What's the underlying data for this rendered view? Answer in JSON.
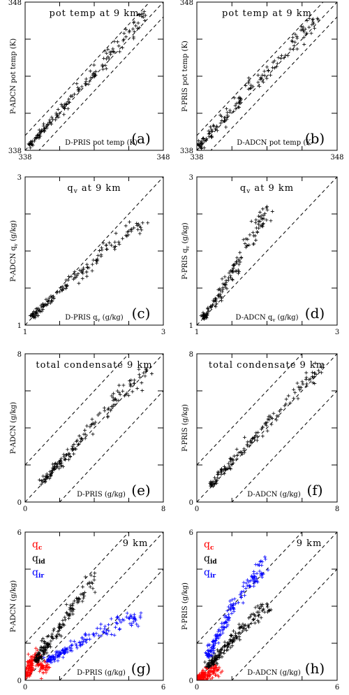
{
  "figure": {
    "panels": [
      {
        "id": "a",
        "title": "pot temp at 9 km",
        "xlabel": "D-PRIS pot temp (K)",
        "ylabel": "P-ADCN pot temp (K)",
        "label": "(a)",
        "xlim": [
          338,
          348
        ],
        "ylim": [
          338,
          348
        ],
        "xticklabels": [
          "338",
          "348"
        ],
        "yticklabels": [
          "338",
          "348"
        ],
        "dashed_offsets": [
          -1,
          0,
          1
        ]
      },
      {
        "id": "b",
        "title": "pot temp at 9 km",
        "xlabel": "D-ADCN pot temp (K",
        "ylabel": "P-PRIS pot temp (K)",
        "label": "(b)",
        "xlim": [
          338,
          348
        ],
        "ylim": [
          338,
          348
        ],
        "xticklabels": [
          "338",
          "348"
        ],
        "yticklabels": [
          "338",
          "348"
        ],
        "dashed_offsets": [
          -1,
          0,
          1
        ]
      },
      {
        "id": "c",
        "title_main": "q",
        "title_sub": "v",
        "title_rest": "at 9 km",
        "xlabel_pre": "D-PRIS q",
        "xlabel_sub": "v",
        "xlabel_post": "(g/kg)",
        "ylabel_pre": "P-ADCN q",
        "ylabel_sub": "v",
        "ylabel_post": "(g/kg)",
        "label": "(c)",
        "xlim": [
          1,
          3
        ],
        "ylim": [
          1,
          3
        ],
        "xticklabels": [
          "1",
          "3"
        ],
        "yticklabels": [
          "1",
          "3"
        ],
        "dashed_offsets": [
          0
        ]
      },
      {
        "id": "d",
        "title_main": "q",
        "title_sub": "v",
        "title_rest": "at 9 km",
        "xlabel_pre": "D-ADCN q",
        "xlabel_sub": "v",
        "xlabel_post": "(g/kg)",
        "ylabel_pre": "P-PRIS q",
        "ylabel_sub": "v",
        "ylabel_post": "(g/kg)",
        "label": "(d)",
        "xlim": [
          1,
          3
        ],
        "ylim": [
          1,
          3
        ],
        "xticklabels": [
          "1",
          "3"
        ],
        "yticklabels": [
          "1",
          "3"
        ],
        "dashed_offsets": [
          0
        ]
      },
      {
        "id": "e",
        "title": "total condensate 9 km",
        "xlabel": "D-PRIS (g/kg)",
        "ylabel": "P-ADCN (g/kg)",
        "label": "(e)",
        "xlim": [
          0,
          8
        ],
        "ylim": [
          0,
          8
        ],
        "xticklabels": [
          "0",
          "8"
        ],
        "yticklabels": [
          "0",
          "8"
        ],
        "dashed_offsets": [
          -2,
          0,
          2
        ]
      },
      {
        "id": "f",
        "title": "total condensate 9 km",
        "xlabel": "D-ADCN (g/kg)",
        "ylabel": "P-PRIS (g/kg)",
        "label": "(f)",
        "xlim": [
          0,
          8
        ],
        "ylim": [
          0,
          8
        ],
        "xticklabels": [
          "0",
          "8"
        ],
        "yticklabels": [
          "0",
          "8"
        ],
        "dashed_offsets": [
          -2,
          0,
          2
        ]
      },
      {
        "id": "g",
        "title": "9 km",
        "xlabel": "D-PRIS (g/kg)",
        "ylabel": "P-ADCN (g/kg)",
        "label": "(g)",
        "xlim": [
          0,
          6
        ],
        "ylim": [
          0,
          6
        ],
        "xticklabels": [
          "0",
          "6"
        ],
        "yticklabels": [
          "0",
          "6"
        ],
        "dashed_offsets": [
          -1.5,
          0,
          1.5
        ],
        "legend": [
          {
            "main": "q",
            "sub": "c",
            "color": "#ff0000"
          },
          {
            "main": "q",
            "sub": "id",
            "color": "#000000"
          },
          {
            "main": "q",
            "sub": "ir",
            "color": "#0000ff"
          }
        ]
      },
      {
        "id": "h",
        "title": "9 km",
        "xlabel": "D-ADCN (g/kg)",
        "ylabel": "P-PRIS (g/kg)",
        "label": "(h)",
        "xlim": [
          0,
          6
        ],
        "ylim": [
          0,
          6
        ],
        "xticklabels": [
          "0",
          "6"
        ],
        "yticklabels": [
          "0",
          "6"
        ],
        "dashed_offsets": [
          -1.5,
          0,
          1.5
        ],
        "legend": [
          {
            "main": "q",
            "sub": "c",
            "color": "#ff0000"
          },
          {
            "main": "q",
            "sub": "id",
            "color": "#000000"
          },
          {
            "main": "q",
            "sub": "ir",
            "color": "#0000ff"
          }
        ]
      }
    ]
  },
  "chart_data": [
    {
      "type": "scatter",
      "panel": "a",
      "xlim": [
        338,
        348
      ],
      "ylim": [
        338,
        348
      ],
      "series": [
        {
          "color": "#000000",
          "x": [
            338.3,
            339.2,
            340.0,
            341.0,
            342.1,
            343.0,
            344.0,
            345.1,
            346.0,
            346.7
          ],
          "y": [
            338.4,
            339.3,
            340.1,
            341.1,
            342.3,
            343.2,
            344.3,
            345.4,
            346.4,
            347.1
          ]
        }
      ]
    },
    {
      "type": "scatter",
      "panel": "b",
      "xlim": [
        338,
        348
      ],
      "ylim": [
        338,
        348
      ],
      "series": [
        {
          "color": "#000000",
          "x": [
            338.2,
            339.1,
            340.0,
            341.0,
            342.0,
            343.1,
            344.0,
            345.0,
            346.0,
            346.6
          ],
          "y": [
            338.3,
            339.3,
            340.2,
            341.2,
            342.3,
            343.4,
            344.2,
            345.3,
            346.3,
            346.9
          ]
        }
      ]
    },
    {
      "type": "scatter",
      "panel": "c",
      "xlim": [
        1,
        3
      ],
      "ylim": [
        1,
        3
      ],
      "series": [
        {
          "color": "#000000",
          "x": [
            1.1,
            1.3,
            1.5,
            1.7,
            1.9,
            2.1,
            2.3,
            2.5,
            2.7
          ],
          "y": [
            1.12,
            1.28,
            1.45,
            1.62,
            1.78,
            1.95,
            2.12,
            2.27,
            2.38
          ]
        }
      ]
    },
    {
      "type": "scatter",
      "panel": "d",
      "xlim": [
        1,
        3
      ],
      "ylim": [
        1,
        3
      ],
      "series": [
        {
          "color": "#000000",
          "x": [
            1.1,
            1.2,
            1.3,
            1.4,
            1.5,
            1.6,
            1.7,
            1.8,
            1.9,
            2.0
          ],
          "y": [
            1.1,
            1.25,
            1.4,
            1.55,
            1.72,
            1.88,
            2.05,
            2.25,
            2.4,
            2.6
          ]
        }
      ]
    },
    {
      "type": "scatter",
      "panel": "e",
      "xlim": [
        0,
        8
      ],
      "ylim": [
        0,
        8
      ],
      "series": [
        {
          "color": "#000000",
          "x": [
            1.0,
            1.8,
            2.5,
            3.3,
            4.0,
            4.8,
            5.5,
            6.3,
            7.0
          ],
          "y": [
            1.1,
            1.9,
            2.6,
            3.4,
            4.2,
            5.0,
            5.8,
            6.4,
            7.2
          ]
        }
      ]
    },
    {
      "type": "scatter",
      "panel": "f",
      "xlim": [
        0,
        8
      ],
      "ylim": [
        0,
        8
      ],
      "series": [
        {
          "color": "#000000",
          "x": [
            0.8,
            1.6,
            2.5,
            3.3,
            4.0,
            4.8,
            5.6,
            6.4,
            7.2
          ],
          "y": [
            0.9,
            1.8,
            2.7,
            3.5,
            4.3,
            5.0,
            5.9,
            6.6,
            7.4
          ]
        }
      ]
    },
    {
      "type": "scatter",
      "panel": "g",
      "xlim": [
        0,
        6
      ],
      "ylim": [
        0,
        6
      ],
      "series": [
        {
          "name": "qc",
          "color": "#ff0000",
          "x": [
            0.1,
            0.2,
            0.3,
            0.5,
            0.7,
            0.9
          ],
          "y": [
            0.2,
            0.5,
            0.8,
            1.0,
            0.6,
            0.4
          ]
        },
        {
          "name": "qid",
          "color": "#000000",
          "x": [
            0.5,
            1.0,
            1.5,
            2.0,
            2.5,
            3.0
          ],
          "y": [
            0.8,
            1.5,
            2.1,
            2.8,
            3.5,
            4.2
          ]
        },
        {
          "name": "qir",
          "color": "#0000ff",
          "x": [
            1.0,
            2.0,
            3.0,
            4.0,
            5.0
          ],
          "y": [
            0.8,
            1.3,
            1.8,
            2.3,
            2.6
          ]
        }
      ]
    },
    {
      "type": "scatter",
      "panel": "h",
      "xlim": [
        0,
        6
      ],
      "ylim": [
        0,
        6
      ],
      "series": [
        {
          "name": "qc",
          "color": "#ff0000",
          "x": [
            0.1,
            0.3,
            0.5,
            0.7,
            0.9
          ],
          "y": [
            0.1,
            0.2,
            0.3,
            0.5,
            0.4
          ]
        },
        {
          "name": "qid",
          "color": "#000000",
          "x": [
            0.5,
            1.0,
            1.5,
            2.0,
            2.5,
            3.0
          ],
          "y": [
            0.6,
            1.1,
            1.6,
            2.1,
            2.6,
            3.1
          ]
        },
        {
          "name": "qir",
          "color": "#0000ff",
          "x": [
            0.5,
            1.0,
            1.5,
            2.0,
            2.5,
            2.8
          ],
          "y": [
            1.0,
            2.0,
            3.0,
            3.6,
            4.2,
            4.8
          ]
        }
      ]
    }
  ]
}
